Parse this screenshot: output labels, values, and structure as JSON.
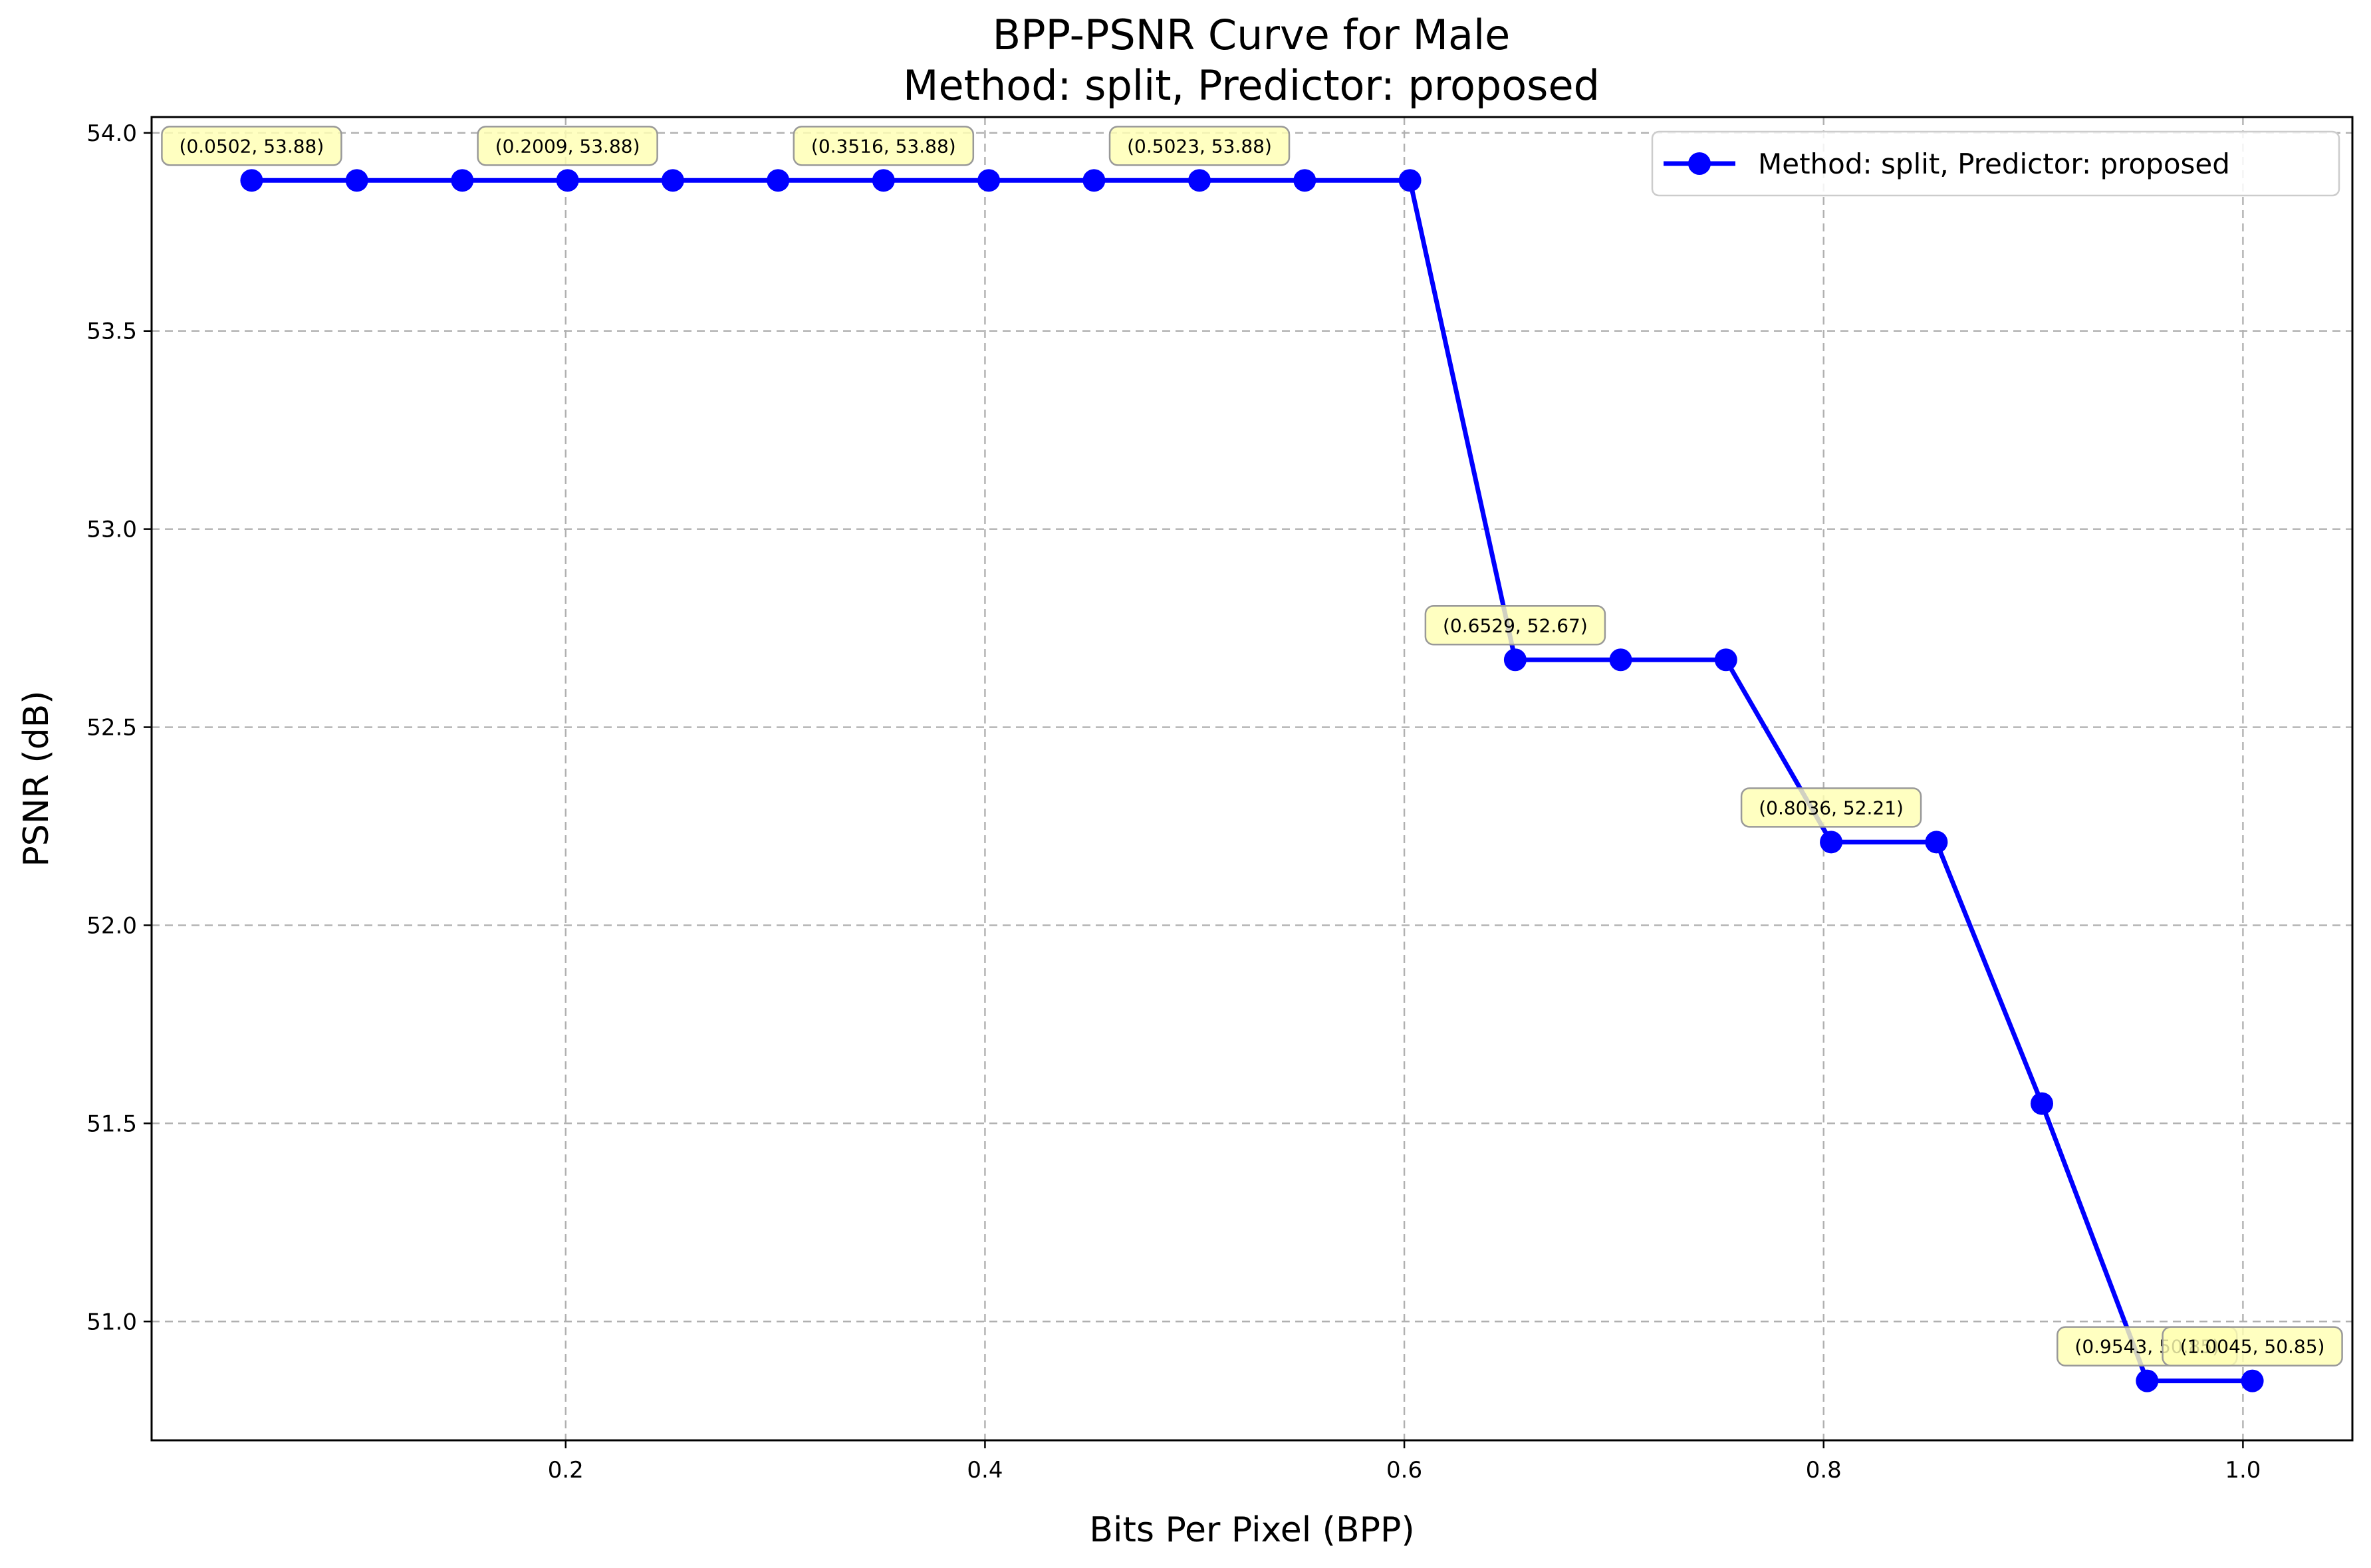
{
  "chart_data": {
    "type": "line",
    "title": "BPP-PSNR Curve for Male",
    "subtitle": "Method: split, Predictor: proposed",
    "xlabel": "Bits Per Pixel (BPP)",
    "ylabel": "PSNR (dB)",
    "xlim": [
      0.0025,
      1.0522
    ],
    "ylim": [
      50.7,
      54.04
    ],
    "xticks": [
      0.2,
      0.4,
      0.6,
      0.8,
      1.0
    ],
    "xtick_labels": [
      "0.2",
      "0.4",
      "0.6",
      "0.8",
      "1.0"
    ],
    "yticks": [
      51.0,
      51.5,
      52.0,
      52.5,
      53.0,
      53.5,
      54.0
    ],
    "ytick_labels": [
      "51.0",
      "51.5",
      "52.0",
      "52.5",
      "53.0",
      "53.5",
      "54.0"
    ],
    "grid": true,
    "legend_position": "top-right",
    "series": [
      {
        "name": "Method: split, Predictor: proposed",
        "color": "#0000ff",
        "marker": "circle",
        "x": [
          0.0502,
          0.1004,
          0.1507,
          0.2009,
          0.2511,
          0.3013,
          0.3516,
          0.4018,
          0.452,
          0.5023,
          0.5525,
          0.6027,
          0.6529,
          0.7032,
          0.7534,
          0.8036,
          0.8538,
          0.9041,
          0.9543,
          1.0045
        ],
        "y": [
          53.88,
          53.88,
          53.88,
          53.88,
          53.88,
          53.88,
          53.88,
          53.88,
          53.88,
          53.88,
          53.88,
          53.88,
          52.67,
          52.67,
          52.67,
          52.21,
          52.21,
          51.55,
          50.85,
          50.85
        ]
      }
    ],
    "annotations": [
      {
        "x": 0.0502,
        "y": 53.88,
        "text": "(0.0502, 53.88)"
      },
      {
        "x": 0.2009,
        "y": 53.88,
        "text": "(0.2009, 53.88)"
      },
      {
        "x": 0.3516,
        "y": 53.88,
        "text": "(0.3516, 53.88)"
      },
      {
        "x": 0.5023,
        "y": 53.88,
        "text": "(0.5023, 53.88)"
      },
      {
        "x": 0.6529,
        "y": 52.67,
        "text": "(0.6529, 52.67)"
      },
      {
        "x": 0.8036,
        "y": 52.21,
        "text": "(0.8036, 52.21)"
      },
      {
        "x": 0.9543,
        "y": 50.85,
        "text": "(0.9543, 50.85)"
      },
      {
        "x": 1.0045,
        "y": 50.85,
        "text": "(1.0045, 50.85)"
      }
    ],
    "annotation_box_color": "#ffffb3"
  }
}
